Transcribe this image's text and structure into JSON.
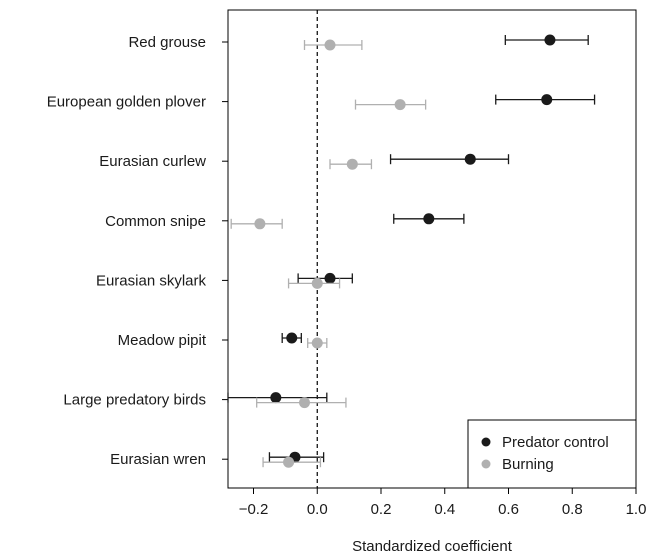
{
  "chart_data": {
    "type": "scatter",
    "subtype": "coefficient-dot-plot-with-error-bars",
    "xlabel": "Standardized coefficient",
    "xlim": [
      -0.28,
      1.0
    ],
    "xticks": [
      -0.2,
      0.0,
      0.2,
      0.4,
      0.6,
      0.8,
      1.0
    ],
    "xtick_labels": [
      "−0.2",
      "0.0",
      "0.2",
      "0.4",
      "0.6",
      "0.8",
      "1.0"
    ],
    "reference_line": 0,
    "categories": [
      "Red grouse",
      "European golden plover",
      "Eurasian curlew",
      "Common snipe",
      "Eurasian skylark",
      "Meadow pipit",
      "Large predatory birds",
      "Eurasian wren"
    ],
    "series": [
      {
        "name": "Predator control",
        "color": "#1a1a1a",
        "values": [
          0.73,
          0.72,
          0.48,
          0.35,
          0.04,
          -0.08,
          -0.13,
          -0.07
        ],
        "lower": [
          0.59,
          0.56,
          0.23,
          0.24,
          -0.06,
          -0.11,
          -0.28,
          -0.15
        ],
        "upper": [
          0.85,
          0.87,
          0.6,
          0.46,
          0.11,
          -0.05,
          0.03,
          0.02
        ]
      },
      {
        "name": "Burning",
        "color": "#b0b0b0",
        "values": [
          0.04,
          0.26,
          0.11,
          -0.18,
          0.0,
          0.0,
          -0.04,
          -0.09
        ],
        "lower": [
          -0.04,
          0.12,
          0.04,
          -0.27,
          -0.09,
          -0.03,
          -0.19,
          -0.17
        ],
        "upper": [
          0.14,
          0.34,
          0.17,
          -0.11,
          0.07,
          0.03,
          0.09,
          0.01
        ]
      }
    ],
    "legend_position": "bottom-right",
    "grid": false
  }
}
